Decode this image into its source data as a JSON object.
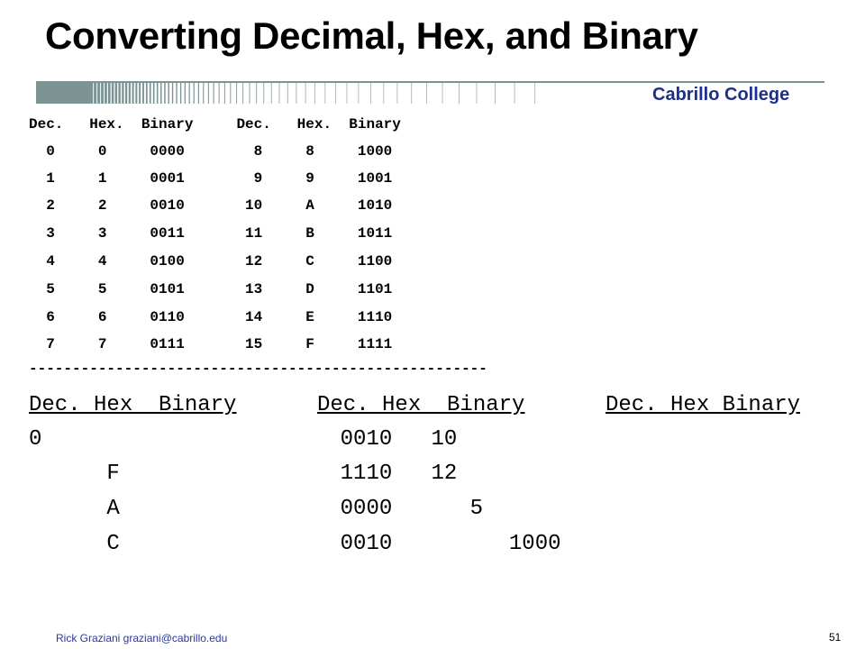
{
  "slide": {
    "title": "Converting Decimal, Hex, and Binary",
    "college": "Cabrillo College",
    "footer": "Rick Graziani  graziani@cabrillo.edu",
    "page_number": "51"
  },
  "ref_table": {
    "header": "Dec.   Hex.  Binary     Dec.   Hex.  Binary",
    "rows": [
      "  0     0     0000        8     8     1000",
      "  1     1     0001        9     9     1001",
      "  2     2     0010       10     A     1010",
      "  3     3     0011       11     B     1011",
      "  4     4     0100       12     C     1100",
      "  5     5     0101       13     D     1101",
      "  6     6     0110       14     E     1110",
      "  7     7     0111       15     F     1111"
    ],
    "separator": "-----------------------------------------------------"
  },
  "exercise": {
    "headers": [
      "Dec. Hex  Binary",
      "Dec. Hex  Binary",
      "Dec. Hex Binary"
    ],
    "rows": [
      "0                       0010   10",
      "      F                 1110   12",
      "      A                 0000      5",
      "      C                 0010         1000"
    ]
  },
  "colors": {
    "accent": "#1d2f8c",
    "bar": "#7d9494"
  }
}
